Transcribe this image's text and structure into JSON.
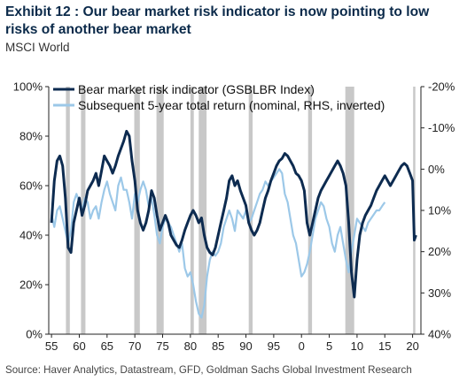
{
  "header": {
    "title": "Exhibit 12 : Our bear market risk indicator is now pointing to low risks of another bear market",
    "subtitle": "MSCI World"
  },
  "footer": {
    "source": "Source: Haver Analytics, Datastream, GFD, Goldman Sachs Global Investment Research"
  },
  "colors": {
    "indicator": "#0d2b50",
    "return": "#9cc8e8",
    "recession": "#c8c8c8",
    "axis": "#222222"
  },
  "chart_data": {
    "type": "line",
    "x_axis": {
      "range": [
        1954.5,
        2021.5
      ],
      "ticks": [
        55,
        60,
        65,
        70,
        75,
        80,
        85,
        90,
        95,
        0,
        5,
        10,
        15,
        20
      ],
      "tick_years": [
        1955,
        1960,
        1965,
        1970,
        1975,
        1980,
        1985,
        1990,
        1995,
        2000,
        2005,
        2010,
        2015,
        2020
      ]
    },
    "y_left": {
      "range": [
        0,
        100
      ],
      "ticks": [
        0,
        20,
        40,
        60,
        80,
        100
      ],
      "tick_labels": [
        "0%",
        "20%",
        "40%",
        "60%",
        "80%",
        "100%"
      ]
    },
    "y_right": {
      "inverted": true,
      "range": [
        -20,
        40
      ],
      "ticks": [
        -20,
        -10,
        0,
        10,
        20,
        30,
        40
      ],
      "tick_labels": [
        "-20%",
        "-10%",
        "0%",
        "10%",
        "20%",
        "30%",
        "40%"
      ]
    },
    "legend_position": "top-left",
    "recession_bands": [
      [
        1957.6,
        1958.3
      ],
      [
        1960.3,
        1961.1
      ],
      [
        1969.9,
        1970.9
      ],
      [
        1973.9,
        1975.2
      ],
      [
        1980.0,
        1980.6
      ],
      [
        1981.5,
        1982.9
      ],
      [
        1990.5,
        1991.2
      ],
      [
        2001.2,
        2001.9
      ],
      [
        2007.9,
        2009.5
      ],
      [
        2020.1,
        2020.5
      ]
    ],
    "series": [
      {
        "name": "Bear market risk indicator (GSBLBR Index)",
        "axis": "left",
        "x": [
          1955.0,
          1955.5,
          1956.0,
          1956.5,
          1957.0,
          1957.5,
          1958.0,
          1958.5,
          1959.0,
          1959.5,
          1960.0,
          1960.5,
          1961.0,
          1961.5,
          1962.0,
          1962.5,
          1963.0,
          1963.5,
          1964.0,
          1964.5,
          1965.0,
          1965.5,
          1966.0,
          1966.5,
          1967.0,
          1967.5,
          1968.0,
          1968.5,
          1969.0,
          1969.5,
          1970.0,
          1970.5,
          1971.0,
          1971.5,
          1972.0,
          1972.5,
          1973.0,
          1973.5,
          1974.0,
          1974.5,
          1975.0,
          1975.5,
          1976.0,
          1976.5,
          1977.0,
          1977.5,
          1978.0,
          1978.5,
          1979.0,
          1979.5,
          1980.0,
          1980.5,
          1981.0,
          1981.5,
          1982.0,
          1982.5,
          1983.0,
          1983.5,
          1984.0,
          1984.5,
          1985.0,
          1985.5,
          1986.0,
          1986.5,
          1987.0,
          1987.5,
          1988.0,
          1988.5,
          1989.0,
          1989.5,
          1990.0,
          1990.5,
          1991.0,
          1991.5,
          1992.0,
          1992.5,
          1993.0,
          1993.5,
          1994.0,
          1994.5,
          1995.0,
          1995.5,
          1996.0,
          1996.5,
          1997.0,
          1997.5,
          1998.0,
          1998.5,
          1999.0,
          1999.5,
          2000.0,
          2000.5,
          2001.0,
          2001.5,
          2002.0,
          2002.5,
          2003.0,
          2003.5,
          2004.0,
          2004.5,
          2005.0,
          2005.5,
          2006.0,
          2006.5,
          2007.0,
          2007.5,
          2008.0,
          2008.5,
          2009.0,
          2009.5,
          2010.0,
          2010.5,
          2011.0,
          2011.5,
          2012.0,
          2012.5,
          2013.0,
          2013.5,
          2014.0,
          2014.5,
          2015.0,
          2015.5,
          2016.0,
          2016.5,
          2017.0,
          2017.5,
          2018.0,
          2018.5,
          2019.0,
          2019.5,
          2020.0,
          2020.3,
          2020.6
        ],
        "values": [
          45,
          62,
          70,
          72,
          68,
          55,
          35,
          33,
          45,
          50,
          55,
          48,
          52,
          58,
          60,
          62,
          65,
          60,
          66,
          72,
          70,
          68,
          65,
          68,
          72,
          75,
          78,
          82,
          80,
          70,
          62,
          50,
          45,
          42,
          45,
          50,
          58,
          55,
          48,
          42,
          45,
          48,
          45,
          40,
          38,
          36,
          35,
          38,
          42,
          45,
          48,
          50,
          48,
          45,
          47,
          40,
          35,
          33,
          32,
          35,
          40,
          45,
          50,
          55,
          62,
          64,
          60,
          62,
          58,
          55,
          52,
          45,
          42,
          40,
          42,
          45,
          50,
          55,
          58,
          62,
          65,
          68,
          70,
          71,
          73,
          72,
          70,
          68,
          65,
          64,
          62,
          58,
          45,
          40,
          45,
          50,
          55,
          58,
          60,
          62,
          64,
          66,
          68,
          70,
          68,
          65,
          60,
          45,
          25,
          15,
          30,
          40,
          45,
          48,
          50,
          52,
          55,
          58,
          60,
          62,
          64,
          62,
          60,
          62,
          64,
          66,
          68,
          69,
          68,
          65,
          62,
          38,
          40
        ]
      },
      {
        "name": "Subsequent 5-year total return (nominal, RHS, inverted)",
        "axis": "right",
        "x": [
          1955.0,
          1955.5,
          1956.0,
          1956.5,
          1957.0,
          1957.5,
          1958.0,
          1958.5,
          1959.0,
          1959.5,
          1960.0,
          1960.5,
          1961.0,
          1961.5,
          1962.0,
          1962.5,
          1963.0,
          1963.5,
          1964.0,
          1964.5,
          1965.0,
          1965.5,
          1966.0,
          1966.5,
          1967.0,
          1967.5,
          1968.0,
          1968.5,
          1969.0,
          1969.5,
          1970.0,
          1970.5,
          1971.0,
          1971.5,
          1972.0,
          1972.5,
          1973.0,
          1973.5,
          1974.0,
          1974.5,
          1975.0,
          1975.5,
          1976.0,
          1976.5,
          1977.0,
          1977.5,
          1978.0,
          1978.5,
          1979.0,
          1979.5,
          1980.0,
          1980.5,
          1981.0,
          1981.5,
          1982.0,
          1982.5,
          1983.0,
          1983.5,
          1984.0,
          1984.5,
          1985.0,
          1985.5,
          1986.0,
          1986.5,
          1987.0,
          1987.5,
          1988.0,
          1988.5,
          1989.0,
          1989.5,
          1990.0,
          1990.5,
          1991.0,
          1991.5,
          1992.0,
          1992.5,
          1993.0,
          1993.5,
          1994.0,
          1994.5,
          1995.0,
          1995.5,
          1996.0,
          1996.5,
          1997.0,
          1997.5,
          1998.0,
          1998.5,
          1999.0,
          1999.5,
          2000.0,
          2000.5,
          2001.0,
          2001.5,
          2002.0,
          2002.5,
          2003.0,
          2003.5,
          2004.0,
          2004.5,
          2005.0,
          2005.5,
          2006.0,
          2006.5,
          2007.0,
          2007.5,
          2008.0,
          2008.5,
          2009.0,
          2009.5,
          2010.0,
          2010.5,
          2011.0,
          2011.5,
          2012.0,
          2012.5,
          2013.0,
          2013.5,
          2014.0,
          2014.5,
          2015.0
        ],
        "values": [
          11,
          14,
          10,
          9,
          12,
          15,
          18,
          15,
          8,
          6,
          8,
          10,
          7,
          8,
          12,
          10,
          9,
          12,
          8,
          5,
          3,
          6,
          8,
          10,
          4,
          2,
          5,
          5,
          8,
          12,
          6,
          8,
          5,
          3,
          5,
          9,
          7,
          11,
          16,
          18,
          14,
          12,
          13,
          14,
          16,
          18,
          20,
          18,
          24,
          26,
          25,
          28,
          32,
          35,
          36,
          33,
          26,
          22,
          20,
          21,
          20,
          18,
          14,
          12,
          10,
          12,
          15,
          10,
          11,
          12,
          10,
          13,
          12,
          10,
          8,
          6,
          5,
          3,
          4,
          3,
          2,
          1,
          0,
          1,
          6,
          8,
          12,
          16,
          18,
          22,
          26,
          25,
          23,
          20,
          16,
          12,
          10,
          8,
          9,
          12,
          14,
          18,
          20,
          16,
          14,
          18,
          22,
          25,
          20,
          16,
          12,
          13,
          14,
          15,
          13,
          12,
          11,
          10,
          10,
          9,
          8
        ]
      }
    ]
  }
}
